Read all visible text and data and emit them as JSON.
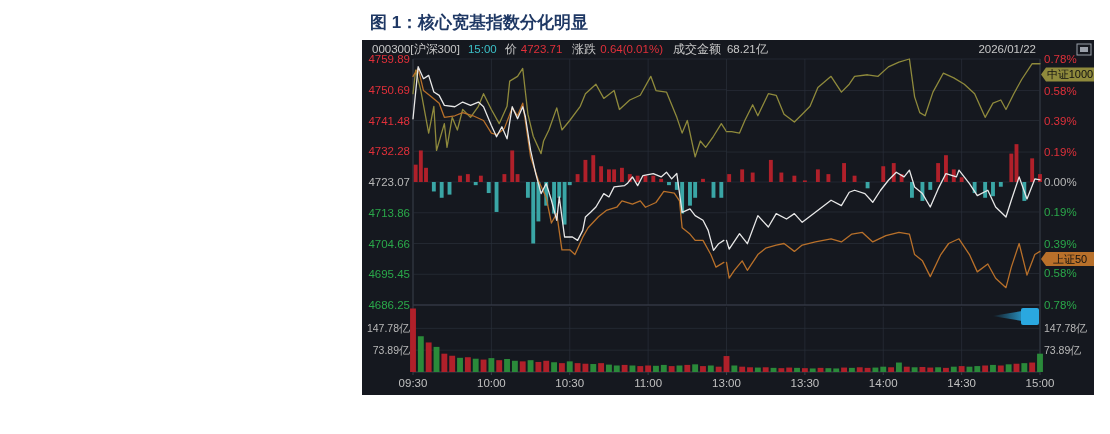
{
  "chart_data": [
    {
      "type": "line",
      "title": "图 1：核心宽基指数分化明显",
      "annotations": [
        "000300[沪深300]",
        "15:00",
        "价",
        "4723.71",
        "涨跌",
        "0.64(0.01%)",
        "成交金额",
        "68.21亿",
        "2026/01/22"
      ],
      "xlim": [
        9.5,
        11.5
      ],
      "xticks": [
        {
          "value": 9.5,
          "label": null
        },
        {
          "value": 10,
          "label": null
        },
        {
          "value": 10.5,
          "label": null
        },
        {
          "value": 11,
          "label": null
        }
      ],
      "ylim": [
        4686.25,
        4759.89
      ],
      "yticks": [
        4686.25,
        4695.45,
        4704.66,
        4713.86,
        4723.07,
        4732.28,
        4741.48,
        4750.69,
        4759.89
      ],
      "y2lim": [
        -0.78,
        0.78
      ],
      "tick_labels": "y",
      "grid": true,
      "line_style": "solid",
      "series": [
        {
          "type": "bar",
          "axis": "y2",
          "x": [
            9.517,
            9.55,
            9.583,
            9.633,
            9.683,
            9.733,
            9.8,
            9.85,
            9.9,
            9.933,
            9.983,
            10.033,
            10.083,
            10.133,
            10.167,
            10.233,
            10.267,
            10.3,
            10.35,
            10.4,
            10.433,
            10.467,
            10.5,
            10.55,
            10.6,
            10.65,
            10.7,
            10.75,
            10.783,
            10.833,
            10.883,
            10.933,
            10.983,
            11.033,
            11.083,
            11.133,
            11.183,
            11.217,
            11.267,
            11.3,
            11.35,
            11.417,
            11.467
          ],
          "values": [
            0.11,
            0.2,
            0.09,
            -0.06,
            -0.1,
            -0.08,
            0.04,
            0.05,
            -0.02,
            0.04,
            -0.07,
            -0.19,
            0.05,
            0.2,
            0.05,
            -0.1,
            -0.39,
            -0.25,
            -0.15,
            -0.2,
            -0.1,
            -0.27,
            -0.02,
            0.05,
            0.14,
            0.17,
            0.1,
            0.08,
            0.08,
            0.09,
            0.05,
            0.04,
            0.04,
            0.04,
            0.02,
            -0.02,
            -0.05,
            -0.2,
            -0.15,
            -0.1,
            0.02,
            -0.1,
            -0.1
          ],
          "colors": [
            "#b0202a",
            "#b0202a",
            "#b0202a",
            "#3aa6a6",
            "#3aa6a6",
            "#3aa6a6",
            "#b0202a",
            "#b0202a",
            "#3aa6a6",
            "#b0202a",
            "#3aa6a6",
            "#3aa6a6",
            "#b0202a",
            "#b0202a",
            "#b0202a",
            "#3aa6a6",
            "#3aa6a6",
            "#3aa6a6",
            "#3aa6a6",
            "#3aa6a6",
            "#3aa6a6",
            "#3aa6a6",
            "#3aa6a6",
            "#b0202a",
            "#b0202a",
            "#b0202a",
            "#b0202a",
            "#b0202a",
            "#b0202a",
            "#b0202a",
            "#b0202a",
            "#b0202a",
            "#b0202a",
            "#b0202a",
            "#b0202a",
            "#3aa6a6",
            "#3aa6a6",
            "#3aa6a6",
            "#3aa6a6",
            "#3aa6a6",
            "#b0202a",
            "#3aa6a6",
            "#3aa6a6"
          ]
        },
        {
          "axis": "y2",
          "color": "#8f8a3c",
          "x": [
            9.5,
            9.517,
            9.55,
            9.6,
            9.633,
            9.65,
            9.7,
            9.717,
            9.75,
            9.783,
            9.817,
            9.867,
            9.917,
            9.95,
            10,
            10.05,
            10.1,
            10.117,
            10.167,
            10.2,
            10.233,
            10.267,
            10.317,
            10.333,
            10.367,
            10.417,
            10.45,
            10.5,
            10.567,
            10.6,
            10.667,
            10.717,
            10.783,
            10.817,
            10.883,
            10.95,
            11.017,
            11.05,
            11.117,
            11.183,
            11.217,
            11.25,
            11.3,
            11.333,
            11.367,
            11.417,
            11.467,
            11.5
          ],
          "values": [
            0.56,
            0.71,
            0.58,
            0.31,
            0.48,
            0.2,
            0.37,
            0.22,
            0.41,
            0.33,
            0.46,
            0.41,
            0.48,
            0.56,
            0.46,
            0.37,
            0.48,
            0.64,
            0.67,
            0.72,
            0.43,
            0.29,
            0.18,
            0.26,
            0.33,
            0.47,
            0.33,
            0.39,
            0.48,
            0.56,
            0.62,
            0.53,
            0.58,
            0.46,
            0.52,
            0.55,
            0.67,
            0.58,
            0.57,
            0.41,
            0.31,
            0.39,
            0.16,
            0.26,
            0.22,
            0.29,
            0.37,
            0.32
          ]
        },
        {
          "axis": "y2",
          "color": "#b8702a",
          "x": [
            9.5,
            9.533,
            9.567,
            9.617,
            9.667,
            9.7,
            9.767,
            9.817,
            9.883,
            9.95,
            10,
            10.033,
            10.083,
            10.133,
            10.167,
            10.2,
            10.25,
            10.3,
            10.35,
            10.383,
            10.417,
            10.45,
            10.5,
            10.533,
            10.583,
            10.617,
            10.683,
            10.733,
            10.8,
            10.833,
            10.9,
            10.95,
            10.983,
            11.05,
            11.1,
            11.167,
            11.2,
            11.217,
            11.267,
            11.3,
            11.35,
            11.4,
            11.433,
            11.483
          ],
          "values": [
            0.67,
            0.72,
            0.58,
            0.54,
            0.5,
            0.41,
            0.42,
            0.44,
            0.42,
            0.39,
            0.31,
            0.3,
            0.34,
            0.47,
            0.42,
            0.5,
            0.16,
            0.01,
            -0.1,
            -0.26,
            -0.2,
            -0.43,
            -0.43,
            -0.46,
            -0.35,
            -0.29,
            -0.22,
            -0.18,
            -0.16,
            -0.12,
            -0.14,
            -0.12,
            -0.16,
            -0.13,
            -0.06,
            -0.07,
            -0.12,
            -0.29,
            -0.33,
            -0.37,
            -0.37,
            -0.46,
            -0.54,
            -0.51
          ]
        },
        {
          "color": "#e8e8e8",
          "x": [
            9.5,
            9.533,
            9.567,
            9.6,
            9.633,
            9.667,
            9.7,
            9.767,
            9.817,
            9.867,
            9.917,
            9.95,
            10,
            10.033,
            10.067,
            10.1,
            10.133,
            10.167,
            10.2,
            10.217,
            10.25,
            10.283,
            10.317,
            10.35,
            10.383,
            10.417,
            10.433,
            10.467,
            10.517,
            10.55,
            10.583,
            10.6,
            10.633,
            10.667,
            10.717,
            10.75,
            10.783,
            10.85,
            10.867,
            10.9,
            10.933,
            10.967,
            11.033,
            11.083,
            11.117,
            11.15,
            11.183,
            11.217,
            11.267,
            11.3,
            11.35,
            11.383,
            11.417,
            11.45,
            11.483
          ],
          "values": [
            4742,
            4757.6,
            4754,
            4755,
            4750,
            4749,
            4746,
            4745.6,
            4747,
            4746,
            4747,
            4745.6,
            4740,
            4736.6,
            4739.6,
            4736,
            4745.6,
            4742,
            4745.6,
            4742.6,
            4732.6,
            4725.6,
            4719.6,
            4722.6,
            4717.6,
            4711.6,
            4718.6,
            4706.6,
            4706.6,
            4705.6,
            4708.6,
            4712.6,
            4714,
            4715.6,
            4719.6,
            4718.6,
            4721.6,
            4722,
            4722.6,
            4724.6,
            4722,
            4725,
            4725.6,
            4724.6,
            4726,
            4724,
            4725.6,
            4714,
            4715,
            4713,
            4711.6,
            4708.6,
            4702.6,
            4704.6,
            4705.6
          ]
        }
      ]
    },
    {
      "type": "line",
      "xlim": [
        13,
        15
      ],
      "xticks": [
        {
          "value": 13,
          "label": null
        },
        {
          "value": 13.5,
          "label": null
        },
        {
          "value": 14,
          "label": null
        },
        {
          "value": 14.5,
          "label": null
        },
        {
          "value": 15,
          "label": null
        }
      ],
      "ylim": [
        4686.25,
        4759.89
      ],
      "y2lim": [
        -0.78,
        0.78
      ],
      "y2ticks": [
        {
          "value": -0.78,
          "label": "0.78%"
        },
        {
          "value": -0.58,
          "label": "0.58%"
        },
        {
          "value": -0.39,
          "label": "0.39%"
        },
        {
          "value": -0.19,
          "label": "0.19%"
        },
        {
          "value": 0,
          "label": "0.00%"
        },
        {
          "value": 0.19,
          "label": "0.19%"
        },
        {
          "value": 0.39,
          "label": "0.39%"
        },
        {
          "value": 0.58,
          "label": "0.58%"
        },
        {
          "value": 0.78,
          "label": "0.78%"
        }
      ],
      "tick_labels": "y",
      "grid": true,
      "line_style": "solid",
      "series": [
        {
          "type": "bar",
          "axis": "y2",
          "x": [
            13.017,
            13.1,
            13.167,
            13.283,
            13.35,
            13.433,
            13.5,
            13.583,
            13.65,
            13.75,
            13.817,
            13.9,
            14,
            14.067,
            14.117,
            14.183,
            14.25,
            14.3,
            14.35,
            14.4,
            14.45,
            14.5,
            14.583,
            14.65,
            14.7,
            14.75,
            14.817,
            14.85,
            14.9,
            14.95,
            15
          ],
          "values": [
            0.05,
            0.08,
            0.06,
            0.14,
            0.06,
            0.04,
            0.01,
            0.08,
            0.05,
            0.12,
            0.04,
            -0.04,
            0.1,
            0.12,
            0.05,
            -0.1,
            -0.12,
            -0.05,
            0.12,
            0.17,
            0.08,
            0.03,
            -0.07,
            -0.1,
            -0.09,
            -0.03,
            0.18,
            0.24,
            -0.12,
            0.15,
            0.05
          ],
          "colors": [
            "#b0202a",
            "#b0202a",
            "#b0202a",
            "#b0202a",
            "#b0202a",
            "#b0202a",
            "#b0202a",
            "#b0202a",
            "#b0202a",
            "#b0202a",
            "#b0202a",
            "#3aa6a6",
            "#b0202a",
            "#b0202a",
            "#b0202a",
            "#3aa6a6",
            "#3aa6a6",
            "#3aa6a6",
            "#b0202a",
            "#b0202a",
            "#b0202a",
            "#b0202a",
            "#3aa6a6",
            "#3aa6a6",
            "#3aa6a6",
            "#3aa6a6",
            "#b0202a",
            "#b0202a",
            "#3aa6a6",
            "#b0202a",
            "#b0202a"
          ]
        },
        {
          "name": "中证1000",
          "axis": "y2",
          "color": "#8f8a3c",
          "x": [
            13,
            13.033,
            13.083,
            13.117,
            13.167,
            13.2,
            13.267,
            13.317,
            13.367,
            13.433,
            13.483,
            13.533,
            13.583,
            13.667,
            13.733,
            13.783,
            13.817,
            13.9,
            13.967,
            14.033,
            14.1,
            14.167,
            14.2,
            14.233,
            14.267,
            14.317,
            14.383,
            14.45,
            14.517,
            14.583,
            14.65,
            14.7,
            14.75,
            14.783,
            14.833,
            14.883,
            14.95,
            15
          ],
          "values": [
            0.32,
            0.32,
            0.31,
            0.39,
            0.49,
            0.42,
            0.56,
            0.55,
            0.43,
            0.38,
            0.43,
            0.48,
            0.6,
            0.67,
            0.57,
            0.62,
            0.67,
            0.68,
            0.67,
            0.73,
            0.76,
            0.78,
            0.54,
            0.44,
            0.42,
            0.57,
            0.69,
            0.66,
            0.62,
            0.56,
            0.41,
            0.5,
            0.52,
            0.46,
            0.56,
            0.65,
            0.75,
            0.75
          ]
        },
        {
          "name": "上证50",
          "axis": "y2",
          "color": "#b8702a",
          "x": [
            13,
            13.017,
            13.05,
            13.1,
            13.133,
            13.2,
            13.25,
            13.317,
            13.367,
            13.433,
            13.483,
            13.567,
            13.667,
            13.733,
            13.8,
            13.867,
            13.933,
            14.017,
            14.1,
            14.167,
            14.2,
            14.25,
            14.3,
            14.367,
            14.417,
            14.483,
            14.55,
            14.6,
            14.667,
            14.717,
            14.783,
            14.817,
            14.867,
            14.917,
            14.967,
            15
          ],
          "values": [
            -0.51,
            -0.61,
            -0.56,
            -0.5,
            -0.56,
            -0.46,
            -0.42,
            -0.4,
            -0.39,
            -0.44,
            -0.4,
            -0.38,
            -0.36,
            -0.38,
            -0.33,
            -0.32,
            -0.38,
            -0.34,
            -0.32,
            -0.33,
            -0.46,
            -0.5,
            -0.6,
            -0.46,
            -0.39,
            -0.36,
            -0.46,
            -0.57,
            -0.52,
            -0.61,
            -0.67,
            -0.54,
            -0.39,
            -0.59,
            -0.46,
            -0.44
          ]
        },
        {
          "color": "#e8e8e8",
          "x": [
            13,
            13.017,
            13.083,
            13.133,
            13.2,
            13.267,
            13.317,
            13.383,
            13.433,
            13.483,
            13.567,
            13.667,
            13.733,
            13.783,
            13.817,
            13.883,
            13.933,
            13.983,
            14.033,
            14.083,
            14.133,
            14.167,
            14.2,
            14.25,
            14.3,
            14.35,
            14.4,
            14.467,
            14.483,
            14.55,
            14.6,
            14.667,
            14.717,
            14.783,
            14.817,
            14.867,
            14.917,
            14.967,
            15
          ],
          "values": [
            4705.6,
            4703,
            4707.6,
            4704.6,
            4713,
            4709.6,
            4713.6,
            4712,
            4713.6,
            4711,
            4714,
            4717.6,
            4716,
            4720,
            4720.6,
            4719.6,
            4717,
            4720.6,
            4723.6,
            4726,
            4724.6,
            4726.6,
            4721.6,
            4719.6,
            4715.6,
            4721,
            4725.6,
            4724.6,
            4726.6,
            4722.6,
            4719,
            4720.6,
            4715.6,
            4712.6,
            4717.6,
            4724.6,
            4718,
            4724,
            4723.7
          ]
        }
      ]
    },
    {
      "type": "bar",
      "xlim": [
        9.5,
        11.5
      ],
      "xticks": [
        {
          "value": 9.5,
          "label": "09:30"
        },
        {
          "value": 10,
          "label": "10:00"
        },
        {
          "value": 10.5,
          "label": "10:30"
        },
        {
          "value": 11,
          "label": "11:00"
        }
      ],
      "ylim": [
        0,
        220
      ],
      "yticks": [
        {
          "value": 73.89,
          "label": "73.89亿"
        },
        {
          "value": 147.78,
          "label": "147.78亿"
        }
      ],
      "grid": true,
      "x": [
        9.5,
        9.55,
        9.6,
        9.65,
        9.7,
        9.75,
        9.8,
        9.85,
        9.9,
        9.95,
        10,
        10.05,
        10.1,
        10.15,
        10.2,
        10.25,
        10.3,
        10.35,
        10.4,
        10.45,
        10.5,
        10.55,
        10.6,
        10.65,
        10.7,
        10.75,
        10.8,
        10.85,
        10.9,
        10.95,
        11,
        11.05,
        11.1,
        11.15,
        11.2,
        11.25,
        11.3,
        11.35,
        11.4,
        11.45
      ],
      "values": [
        215,
        121,
        100,
        85,
        62,
        55,
        48,
        50,
        45,
        42,
        47,
        40,
        44,
        38,
        36,
        40,
        34,
        38,
        33,
        30,
        36,
        30,
        28,
        27,
        30,
        25,
        22,
        24,
        22,
        20,
        22,
        21,
        24,
        20,
        22,
        24,
        26,
        20,
        22,
        18
      ],
      "colors": [
        "#b0202a",
        "#2a8a3a",
        "#b0202a",
        "#2a8a3a",
        "#b0202a",
        "#b0202a",
        "#2a8a3a",
        "#b0202a",
        "#2a8a3a",
        "#b0202a",
        "#2a8a3a",
        "#b0202a",
        "#2a8a3a",
        "#2a8a3a",
        "#b0202a",
        "#2a8a3a",
        "#b0202a",
        "#b0202a",
        "#2a8a3a",
        "#b0202a",
        "#2a8a3a",
        "#b0202a",
        "#b0202a",
        "#2a8a3a",
        "#b0202a",
        "#2a8a3a",
        "#2a8a3a",
        "#b0202a",
        "#2a8a3a",
        "#b0202a",
        "#b0202a",
        "#2a8a3a",
        "#2a8a3a",
        "#b0202a",
        "#2a8a3a",
        "#b0202a",
        "#2a8a3a",
        "#b0202a",
        "#2a8a3a",
        "#b0202a"
      ]
    },
    {
      "type": "bar",
      "xlim": [
        13,
        15
      ],
      "xticks": [
        {
          "value": 13,
          "label": "13:00"
        },
        {
          "value": 13.5,
          "label": "13:30"
        },
        {
          "value": 14,
          "label": "14:00"
        },
        {
          "value": 14.5,
          "label": "14:30"
        },
        {
          "value": 15,
          "label": "15:00"
        }
      ],
      "y2lim": [
        0,
        220
      ],
      "y2ticks": [
        {
          "value": 73.89,
          "label": "73.89亿"
        },
        {
          "value": 147.78,
          "label": "147.78亿"
        }
      ],
      "grid": true,
      "x": [
        13,
        13.05,
        13.1,
        13.15,
        13.2,
        13.25,
        13.3,
        13.35,
        13.4,
        13.45,
        13.5,
        13.55,
        13.6,
        13.65,
        13.7,
        13.75,
        13.8,
        13.85,
        13.9,
        13.95,
        14,
        14.05,
        14.1,
        14.15,
        14.2,
        14.25,
        14.3,
        14.35,
        14.4,
        14.45,
        14.5,
        14.55,
        14.6,
        14.65,
        14.7,
        14.75,
        14.8,
        14.85,
        14.9,
        14.95,
        15
      ],
      "series": [
        {
          "axis": "y2",
          "values": [
            54,
            22,
            18,
            16,
            15,
            16,
            14,
            13,
            15,
            14,
            13,
            12,
            14,
            13,
            12,
            15,
            14,
            16,
            14,
            15,
            18,
            16,
            32,
            18,
            16,
            17,
            15,
            16,
            14,
            18,
            20,
            18,
            20,
            22,
            24,
            22,
            26,
            28,
            30,
            32,
            62
          ],
          "colors": [
            "#b0202a",
            "#2a8a3a",
            "#b0202a",
            "#b0202a",
            "#2a8a3a",
            "#b0202a",
            "#2a8a3a",
            "#b0202a",
            "#b0202a",
            "#2a8a3a",
            "#b0202a",
            "#2a8a3a",
            "#b0202a",
            "#2a8a3a",
            "#2a8a3a",
            "#b0202a",
            "#2a8a3a",
            "#b0202a",
            "#b0202a",
            "#2a8a3a",
            "#2a8a3a",
            "#b0202a",
            "#2a8a3a",
            "#b0202a",
            "#2a8a3a",
            "#b0202a",
            "#b0202a",
            "#2a8a3a",
            "#b0202a",
            "#2a8a3a",
            "#b0202a",
            "#2a8a3a",
            "#2a8a3a",
            "#b0202a",
            "#2a8a3a",
            "#b0202a",
            "#2a8a3a",
            "#b0202a",
            "#2a8a3a",
            "#b0202a",
            "#2a8a3a"
          ]
        }
      ]
    }
  ]
}
